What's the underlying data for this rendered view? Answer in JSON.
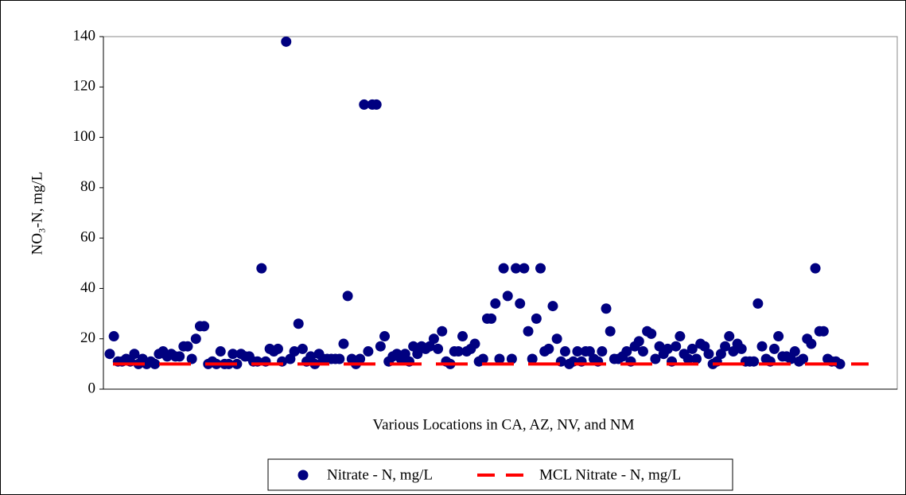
{
  "chart_data": {
    "type": "scatter",
    "y_label": "NO₃-N, mg/L",
    "x_label": "Various Locations in CA, AZ, NV, and NM",
    "ylim": [
      0,
      140
    ],
    "yticks": [
      0,
      20,
      40,
      60,
      80,
      100,
      120,
      140
    ],
    "series": [
      {
        "name": "Nitrate - N, mg/L",
        "color": "#000080",
        "values": [
          14,
          21,
          11,
          11,
          12,
          11,
          14,
          10,
          12,
          10,
          11,
          10,
          14,
          15,
          13,
          14,
          13,
          13,
          17,
          17,
          12,
          20,
          25,
          25,
          10,
          11,
          10,
          15,
          10,
          10,
          14,
          10,
          14,
          13,
          13,
          11,
          11,
          48,
          11,
          16,
          15,
          16,
          11,
          138,
          12,
          15,
          26,
          16,
          11,
          13,
          10,
          14,
          12,
          12,
          12,
          12,
          12,
          18,
          37,
          12,
          10,
          12,
          113,
          15,
          113,
          113,
          17,
          21,
          11,
          13,
          14,
          12,
          14,
          11,
          17,
          14,
          17,
          16,
          17,
          20,
          16,
          23,
          11,
          10,
          15,
          15,
          21,
          15,
          16,
          18,
          11,
          12,
          28,
          28,
          34,
          12,
          48,
          37,
          12,
          48,
          34,
          48,
          23,
          12,
          28,
          48,
          15,
          16,
          33,
          20,
          11,
          15,
          10,
          11,
          15,
          11,
          15,
          15,
          12,
          11,
          15,
          32,
          23,
          12,
          12,
          13,
          15,
          11,
          17,
          19,
          15,
          23,
          22,
          12,
          17,
          14,
          16,
          11,
          17,
          21,
          14,
          12,
          16,
          12,
          18,
          17,
          14,
          10,
          11,
          14,
          17,
          21,
          15,
          18,
          16,
          11,
          11,
          11,
          34,
          17,
          12,
          11,
          16,
          21,
          13,
          13,
          12,
          15,
          11,
          12,
          20,
          18,
          48,
          23,
          23,
          12,
          11,
          11,
          10
        ]
      },
      {
        "name": "MCL Nitrate - N, mg/L",
        "color": "#ff0000",
        "type": "line",
        "values": [
          10
        ]
      }
    ]
  }
}
